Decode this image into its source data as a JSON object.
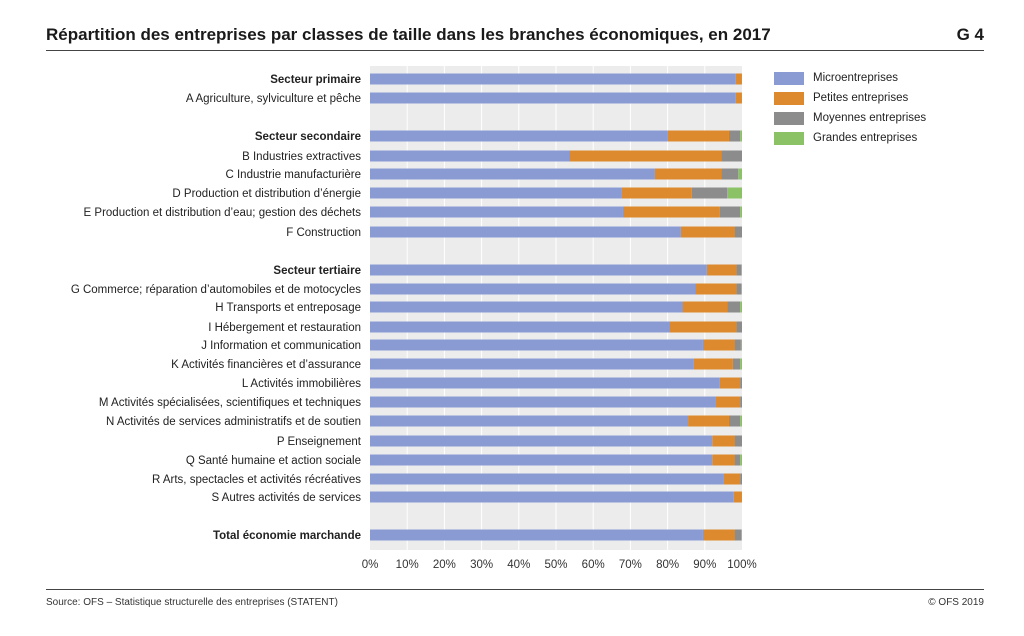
{
  "header": {
    "title": "Répartition des entreprises par classes de taille dans les branches économiques, en 2017",
    "figure_number": "G 4"
  },
  "footer": {
    "source": "Source: OFS – Statistique structurelle des entreprises (STATENT)",
    "copyright": "© OFS 2019"
  },
  "chart_data": {
    "type": "bar",
    "orientation": "horizontal",
    "stacked": true,
    "title": "Répartition des entreprises par classes de taille dans les branches économiques, en 2017",
    "xlim": [
      0,
      100
    ],
    "x_ticks": [
      "0%",
      "10%",
      "20%",
      "30%",
      "40%",
      "50%",
      "60%",
      "70%",
      "80%",
      "90%",
      "100%"
    ],
    "grid": true,
    "legend_position": "right",
    "series": [
      {
        "name": "Microentreprises",
        "color": "#8a9bd3"
      },
      {
        "name": "Petites entreprises",
        "color": "#dd8a2e"
      },
      {
        "name": "Moyennes entreprises",
        "color": "#8c8c8c"
      },
      {
        "name": "Grandes entreprises",
        "color": "#8bc266"
      }
    ],
    "categories": [
      {
        "label": "Secteur primaire",
        "bold": true,
        "values": [
          98.3,
          1.6,
          0.1,
          0.0
        ]
      },
      {
        "label": "A  Agriculture, sylviculture et pêche",
        "bold": false,
        "values": [
          98.3,
          1.6,
          0.1,
          0.0
        ]
      },
      {
        "label": "Secteur secondaire",
        "bold": true,
        "values": [
          80.0,
          16.5,
          3.0,
          0.5
        ]
      },
      {
        "label": "B  Industries extractives",
        "bold": false,
        "values": [
          53.5,
          41.0,
          5.5,
          0.0
        ]
      },
      {
        "label": "C  Industrie manufacturière",
        "bold": false,
        "values": [
          76.5,
          18.0,
          4.5,
          1.0
        ]
      },
      {
        "label": "D  Production et distribution d’énergie",
        "bold": false,
        "values": [
          67.5,
          19.0,
          9.5,
          4.0
        ]
      },
      {
        "label": "E  Production et distribution d’eau; gestion des déchets",
        "bold": false,
        "values": [
          68.0,
          26.0,
          5.5,
          0.5
        ]
      },
      {
        "label": "F  Construction",
        "bold": false,
        "values": [
          83.5,
          14.5,
          2.0,
          0.0
        ]
      },
      {
        "label": "Secteur tertiaire",
        "bold": true,
        "values": [
          90.5,
          8.0,
          1.3,
          0.2
        ]
      },
      {
        "label": "G  Commerce; réparation d’automobiles et de motocycles",
        "bold": false,
        "values": [
          87.5,
          11.0,
          1.3,
          0.2
        ]
      },
      {
        "label": "H  Transports et entreposage",
        "bold": false,
        "values": [
          84.0,
          12.0,
          3.5,
          0.5
        ]
      },
      {
        "label": "I  Hébergement et restauration",
        "bold": false,
        "values": [
          80.5,
          18.0,
          1.5,
          0.0
        ]
      },
      {
        "label": "J  Information et communication",
        "bold": false,
        "values": [
          89.5,
          8.5,
          1.7,
          0.3
        ]
      },
      {
        "label": "K  Activités financières et d’assurance",
        "bold": false,
        "values": [
          87.0,
          10.5,
          2.0,
          0.5
        ]
      },
      {
        "label": "L  Activités immobilières",
        "bold": false,
        "values": [
          94.0,
          5.5,
          0.5,
          0.0
        ]
      },
      {
        "label": "M  Activités spécialisées, scientifiques et techniques",
        "bold": false,
        "values": [
          93.0,
          6.5,
          0.5,
          0.0
        ]
      },
      {
        "label": "N  Activités de services administratifs et de soutien",
        "bold": false,
        "values": [
          85.5,
          11.0,
          3.0,
          0.5
        ]
      },
      {
        "label": "P  Enseignement",
        "bold": false,
        "values": [
          92.0,
          6.0,
          2.0,
          0.0
        ]
      },
      {
        "label": "Q  Santé humaine et action sociale",
        "bold": false,
        "values": [
          92.0,
          6.0,
          1.5,
          0.5
        ]
      },
      {
        "label": "R  Arts, spectacles et activités récréatives",
        "bold": false,
        "values": [
          95.0,
          4.5,
          0.5,
          0.0
        ]
      },
      {
        "label": "S  Autres activités de services",
        "bold": false,
        "values": [
          97.8,
          2.0,
          0.2,
          0.0
        ]
      },
      {
        "label": "Total économie marchande",
        "bold": true,
        "values": [
          89.5,
          8.5,
          1.8,
          0.2
        ]
      }
    ]
  }
}
